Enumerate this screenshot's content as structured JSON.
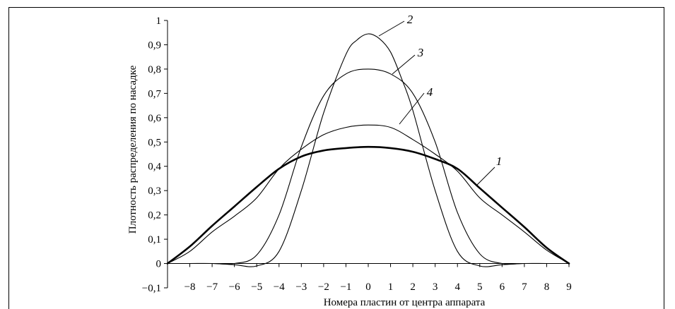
{
  "chart_data": {
    "type": "line",
    "title": "",
    "xlabel": "Номера пластин от центра аппарата",
    "ylabel": "Плотность распределения по насадке",
    "xlim": [
      -9,
      9
    ],
    "ylim": [
      -0.1,
      1
    ],
    "x_ticks": [
      {
        "value": -8,
        "label": "−8"
      },
      {
        "value": -7,
        "label": "−7"
      },
      {
        "value": -6,
        "label": "−6"
      },
      {
        "value": -5,
        "label": "−5"
      },
      {
        "value": -4,
        "label": "−4"
      },
      {
        "value": -3,
        "label": "−3"
      },
      {
        "value": -2,
        "label": "−2"
      },
      {
        "value": -1,
        "label": "−1"
      },
      {
        "value": 0,
        "label": "0"
      },
      {
        "value": 1,
        "label": "1"
      },
      {
        "value": 2,
        "label": "2"
      },
      {
        "value": 3,
        "label": "3"
      },
      {
        "value": 4,
        "label": "4"
      },
      {
        "value": 5,
        "label": "5"
      },
      {
        "value": 6,
        "label": "6"
      },
      {
        "value": 7,
        "label": "7"
      },
      {
        "value": 8,
        "label": "8"
      },
      {
        "value": 9,
        "label": "9"
      }
    ],
    "y_ticks": [
      {
        "value": 1,
        "label": "1"
      },
      {
        "value": 0.9,
        "label": "0,9"
      },
      {
        "value": 0.8,
        "label": "0,8"
      },
      {
        "value": 0.7,
        "label": "0,7"
      },
      {
        "value": 0.6,
        "label": "0,6"
      },
      {
        "value": 0.5,
        "label": "0,5"
      },
      {
        "value": 0.4,
        "label": "0,4"
      },
      {
        "value": 0.3,
        "label": "0,3"
      },
      {
        "value": 0.2,
        "label": "0,2"
      },
      {
        "value": 0.1,
        "label": "0,1"
      },
      {
        "value": 0,
        "label": "0"
      },
      {
        "value": -0.1,
        "label": "−0,1"
      }
    ],
    "grid": false,
    "series": [
      {
        "label": "1",
        "line_width": "thick",
        "x": [
          -9,
          -8,
          -7,
          -6,
          -5,
          -4,
          -3,
          -2,
          -1,
          0,
          1,
          2,
          3,
          4,
          5,
          6,
          7,
          8,
          9
        ],
        "y": [
          0,
          0.07,
          0.155,
          0.235,
          0.315,
          0.39,
          0.44,
          0.465,
          0.475,
          0.48,
          0.475,
          0.46,
          0.43,
          0.39,
          0.31,
          0.23,
          0.15,
          0.065,
          0
        ]
      },
      {
        "label": "2",
        "line_width": "thin",
        "x": [
          -9,
          -8,
          -7,
          -6,
          -5,
          -4,
          -3,
          -2,
          -1,
          -0.5,
          0,
          0.5,
          1,
          1.5,
          2,
          3,
          4,
          5,
          6,
          7,
          8,
          9
        ],
        "y": [
          0,
          0,
          0,
          -0.005,
          -0.01,
          0.05,
          0.3,
          0.62,
          0.86,
          0.92,
          0.945,
          0.925,
          0.87,
          0.76,
          0.63,
          0.3,
          0.05,
          -0.01,
          -0.005,
          0,
          0,
          0
        ]
      },
      {
        "label": "3",
        "line_width": "thin",
        "x": [
          -9,
          -8,
          -7,
          -6,
          -5,
          -4,
          -3,
          -2,
          -1,
          0,
          1,
          2,
          3,
          4,
          5,
          6,
          7,
          8,
          9
        ],
        "y": [
          0,
          0,
          0,
          0,
          0.035,
          0.2,
          0.48,
          0.69,
          0.78,
          0.8,
          0.78,
          0.7,
          0.5,
          0.21,
          0.04,
          0,
          0,
          0,
          0
        ]
      },
      {
        "label": "4",
        "line_width": "thin",
        "x": [
          -9,
          -8,
          -7,
          -6,
          -5,
          -4,
          -3,
          -2,
          -1,
          0,
          1,
          2,
          3,
          4,
          5,
          6,
          7,
          8,
          9
        ],
        "y": [
          0,
          0.05,
          0.13,
          0.195,
          0.27,
          0.39,
          0.47,
          0.53,
          0.56,
          0.57,
          0.56,
          0.51,
          0.45,
          0.38,
          0.27,
          0.2,
          0.13,
          0.055,
          0
        ]
      }
    ]
  }
}
